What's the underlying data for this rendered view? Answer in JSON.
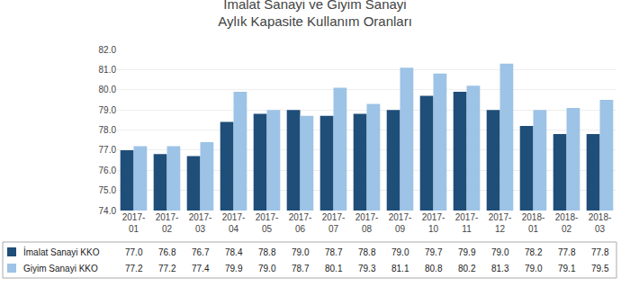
{
  "chart_data": {
    "type": "bar",
    "title": "İmalat Sanayi ve Giyim Sanayi\nAylık Kapasite Kullanım Oranları",
    "categories": [
      "2017-\n01",
      "2017-\n02",
      "2017-\n03",
      "2017-\n04",
      "2017-\n05",
      "2017-\n06",
      "2017-\n07",
      "2017-\n08",
      "2017-\n09",
      "2017-\n10",
      "2017-\n11",
      "2017-\n12",
      "2018-\n01",
      "2018-\n02",
      "2018-\n03"
    ],
    "series": [
      {
        "name": "İmalat Sanayi KKO",
        "color": "#1F4E79",
        "values": [
          77.0,
          76.8,
          76.7,
          78.4,
          78.8,
          79.0,
          78.7,
          78.8,
          79.0,
          79.7,
          79.9,
          79.0,
          78.2,
          77.8,
          77.8
        ],
        "value_labels": [
          "77.0",
          "76.8",
          "76.7",
          "78.4",
          "78.8",
          "79.0",
          "78.7",
          "78.8",
          "79.0",
          "79.7",
          "79.9",
          "79.0",
          "78.2",
          "77.8",
          "77.8"
        ]
      },
      {
        "name": "Giyim Sanayi KKO",
        "color": "#9DC3E6",
        "values": [
          77.2,
          77.2,
          77.4,
          79.9,
          79.0,
          78.7,
          80.1,
          79.3,
          81.1,
          80.8,
          80.2,
          81.3,
          79.0,
          79.1,
          79.5
        ],
        "value_labels": [
          "77.2",
          "77.2",
          "77.4",
          "79.9",
          "79.0",
          "78.7",
          "80.1",
          "79.3",
          "81.1",
          "80.8",
          "80.2",
          "81.3",
          "79.0",
          "79.1",
          "79.5"
        ]
      }
    ],
    "ylim": [
      74.0,
      82.0
    ],
    "yticks": [
      {
        "value": 74,
        "label": "74.0"
      },
      {
        "value": 75,
        "label": "75.0"
      },
      {
        "value": 76,
        "label": "76.0"
      },
      {
        "value": 77,
        "label": "77.0"
      },
      {
        "value": 78,
        "label": "78.0"
      },
      {
        "value": 79,
        "label": "79.0"
      },
      {
        "value": 80,
        "label": "80.0"
      },
      {
        "value": 81,
        "label": "81.0"
      },
      {
        "value": 82,
        "label": "82.0"
      }
    ],
    "grid": true
  }
}
